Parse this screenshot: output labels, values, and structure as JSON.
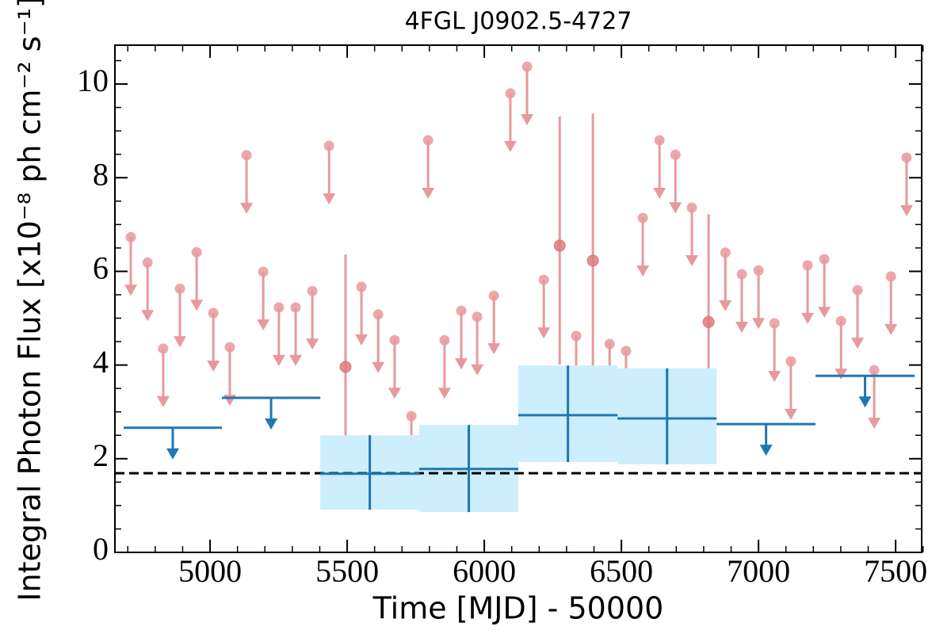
{
  "chart_data": {
    "type": "scatter",
    "title": "4FGL J0902.5-4727",
    "x_label": "Time [MJD] - 50000",
    "y_label": "Integral Photon Flux [x10⁻⁸ ph cm⁻² s⁻¹]",
    "xlim": [
      4653,
      7595
    ],
    "ylim": [
      0,
      10.83
    ],
    "xticks": [
      5000,
      5500,
      6000,
      6500,
      7000,
      7500
    ],
    "yticks": [
      0,
      2,
      4,
      6,
      8,
      10
    ],
    "xticks_minor": [
      4700,
      4800,
      4900,
      5100,
      5200,
      5300,
      5400,
      5600,
      5700,
      5800,
      5900,
      6100,
      6200,
      6300,
      6400,
      6600,
      6700,
      6800,
      6900,
      7100,
      7200,
      7300,
      7400,
      7600
    ],
    "yticks_minor": [
      0.5,
      1,
      1.5,
      2.5,
      3,
      3.5,
      4.5,
      5,
      5.5,
      6.5,
      7,
      7.5,
      8.5,
      9,
      9.5,
      10.5
    ],
    "hline": 1.69,
    "hline_color": "#000000",
    "series": [
      {
        "color": "#e8999c",
        "upper_limit": true,
        "x": [
          4711,
          4772,
          4829,
          4890,
          4951,
          5012,
          5072,
          5133,
          5194,
          5251,
          5312,
          5373,
          5434,
          5552,
          5613,
          5673,
          5734,
          5795,
          5855,
          5916,
          5974,
          6035,
          6095,
          6156,
          6217,
          6335,
          6457,
          6517,
          6578,
          6639,
          6697,
          6757,
          6879,
          6939,
          7000,
          7058,
          7118,
          7179,
          7240,
          7301,
          7361,
          7422,
          7483,
          7540
        ],
        "values": [
          6.73,
          6.19,
          4.35,
          5.63,
          6.41,
          5.11,
          4.38,
          8.48,
          5.99,
          5.23,
          5.23,
          5.58,
          8.68,
          5.67,
          5.08,
          4.53,
          2.91,
          8.8,
          4.53,
          5.16,
          5.03,
          5.48,
          9.8,
          10.37,
          5.82,
          4.62,
          4.45,
          4.3,
          7.14,
          8.8,
          8.49,
          7.36,
          6.4,
          5.94,
          6.02,
          4.89,
          4.08,
          6.13,
          6.26,
          4.94,
          5.6,
          3.89,
          5.89,
          8.43
        ]
      },
      {
        "color": "#e07b7f",
        "x": [
          5494,
          6275,
          6396,
          6818
        ],
        "values": [
          3.96,
          6.55,
          6.23,
          4.92
        ],
        "lower": [
          2.01,
          4.01,
          3.21,
          2.79
        ],
        "upper": [
          6.36,
          9.31,
          9.37,
          7.22
        ]
      },
      {
        "color": "#1f77b4",
        "upper_limit": true,
        "x_start": [
          4685,
          5043,
          6847,
          7208
        ],
        "x_end": [
          5043,
          5402,
          7208,
          7569
        ],
        "values": [
          2.66,
          3.3,
          2.74,
          3.77
        ]
      },
      {
        "color": "#1f77b4",
        "band_color": "#cdeefc",
        "x_start": [
          5402,
          5763,
          6124,
          6486
        ],
        "x_end": [
          5763,
          6124,
          6486,
          6847
        ],
        "values": [
          1.68,
          1.78,
          2.93,
          2.86
        ],
        "lower": [
          0.91,
          0.86,
          1.93,
          1.88
        ],
        "upper": [
          2.5,
          2.72,
          3.99,
          3.93
        ]
      }
    ]
  }
}
